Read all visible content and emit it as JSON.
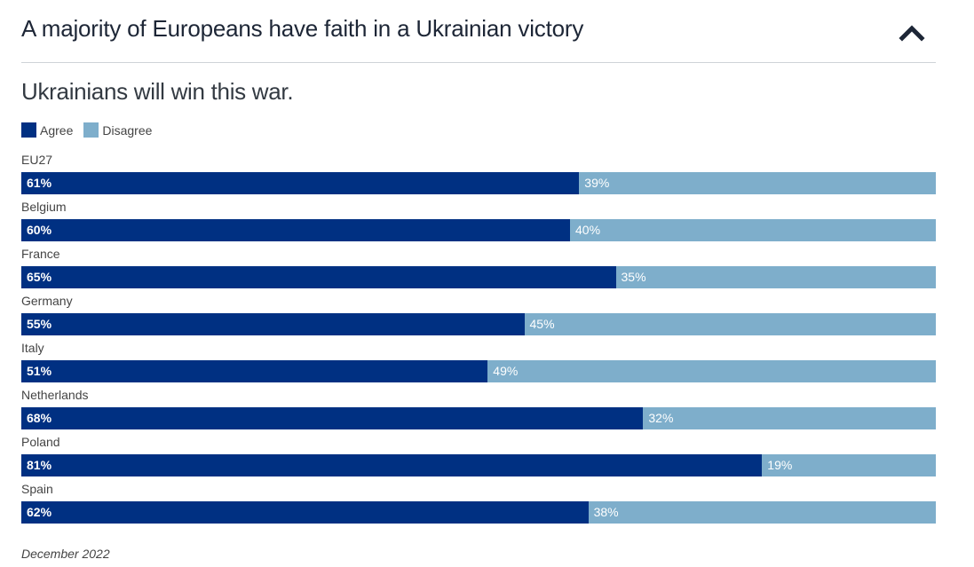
{
  "header": {
    "title": "A majority of Europeans have faith in a Ukrainian victory",
    "collapse_icon": "chevron-up-icon"
  },
  "colors": {
    "agree": "#003082",
    "disagree": "#7eaecb",
    "text": "#1d2636"
  },
  "chart_data": {
    "type": "bar",
    "orientation": "horizontal",
    "stacked": true,
    "title": "Ukrainians will win this war.",
    "xlabel": "",
    "ylabel": "",
    "xlim": [
      0,
      100
    ],
    "unit": "%",
    "grid": false,
    "legend_position": "top-left",
    "legend": [
      "Agree",
      "Disagree"
    ],
    "categories": [
      "EU27",
      "Belgium",
      "France",
      "Germany",
      "Italy",
      "Netherlands",
      "Poland",
      "Spain"
    ],
    "series": [
      {
        "name": "Agree",
        "values": [
          61,
          60,
          65,
          55,
          51,
          68,
          81,
          62
        ]
      },
      {
        "name": "Disagree",
        "values": [
          39,
          40,
          35,
          45,
          49,
          32,
          19,
          38
        ]
      }
    ],
    "note": "December 2022"
  }
}
